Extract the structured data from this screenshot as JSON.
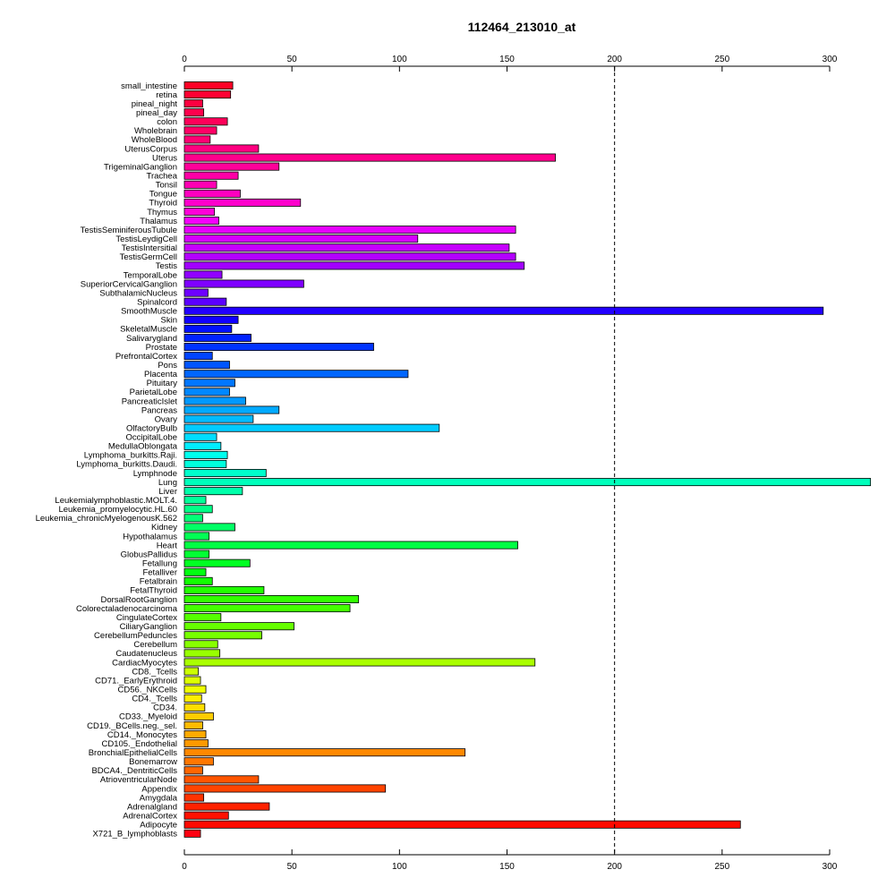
{
  "chart_data": {
    "type": "bar",
    "orientation": "horizontal",
    "title": "112464_213010_at",
    "xlim": [
      0,
      300
    ],
    "x_ticks": [
      0,
      50,
      100,
      150,
      200,
      250,
      300
    ],
    "reference_line": 200,
    "grid": false,
    "categories": [
      "small_intestine",
      "retina",
      "pineal_night",
      "pineal_day",
      "colon",
      "Wholebrain",
      "WholeBlood",
      "UterusCorpus",
      "Uterus",
      "TrigeminalGanglion",
      "Trachea",
      "Tonsil",
      "Tongue",
      "Thyroid",
      "Thymus",
      "Thalamus",
      "TestisSeminiferousTubule",
      "TestisLeydigCell",
      "TestisIntersitial",
      "TestisGermCell",
      "Testis",
      "TemporalLobe",
      "SuperiorCervicalGanglion",
      "SubthalamicNucleus",
      "Spinalcord",
      "SmoothMuscle",
      "Skin",
      "SkeletalMuscle",
      "Salivarygland",
      "Prostate",
      "PrefrontalCortex",
      "Pons",
      "Placenta",
      "Pituitary",
      "ParietalLobe",
      "PancreaticIslet",
      "Pancreas",
      "Ovary",
      "OlfactoryBulb",
      "OccipitalLobe",
      "MedullaOblongata",
      "Lymphoma_burkitts.Raji.",
      "Lymphoma_burkitts.Daudi.",
      "Lymphnode",
      "Lung",
      "Liver",
      "Leukemialymphoblastic.MOLT.4.",
      "Leukemia_promyelocytic.HL.60",
      "Leukemia_chronicMyelogenousK.562",
      "Kidney",
      "Hypothalamus",
      "Heart",
      "GlobusPallidus",
      "Fetallung",
      "Fetalliver",
      "Fetalbrain",
      "FetalThyroid",
      "DorsalRootGanglion",
      "Colorectaladenocarcinoma",
      "CingulateCortex",
      "CiliaryGanglion",
      "CerebellumPeduncles",
      "Cerebellum",
      "Caudatenucleus",
      "CardiacMyocytes",
      "CD8._Tcells",
      "CD71._EarlyErythroid",
      "CD56._NKCells",
      "CD4._Tcells",
      "CD34.",
      "CD33._Myeloid",
      "CD19._BCells.neg._sel.",
      "CD14._Monocytes",
      "CD105._Endothelial",
      "BronchialEpithelialCells",
      "Bonemarrow",
      "BDCA4._DentriticCells",
      "AtrioventricularNode",
      "Appendix",
      "Amygdala",
      "Adrenalgland",
      "AdrenalCortex",
      "Adipocyte",
      "X721_B_lymphoblasts"
    ],
    "values": [
      22.5,
      21.5,
      8.5,
      9,
      20,
      15,
      12,
      34.5,
      172.5,
      44,
      25,
      15,
      26,
      54,
      14,
      16,
      154,
      108.5,
      151,
      154,
      158,
      17.5,
      55.5,
      11,
      19.5,
      297,
      25,
      22,
      31,
      88,
      13,
      21,
      104,
      23.5,
      21,
      28.5,
      44,
      32,
      118.5,
      15,
      17,
      20,
      19.5,
      38,
      319,
      27,
      10,
      13,
      8.5,
      23.5,
      11.5,
      155,
      11.5,
      30.5,
      10,
      13,
      37,
      81,
      77,
      17,
      51,
      36,
      15.5,
      16.5,
      163,
      6.5,
      7.5,
      10,
      8,
      9.5,
      13.5,
      8.5,
      10,
      11,
      130.5,
      13.5,
      8.5,
      34.5,
      93.5,
      9,
      39.5,
      20.5,
      258.5,
      7.5
    ],
    "colors": [
      "#ff0026",
      "#ff0033",
      "#ff0040",
      "#ff004d",
      "#ff0059",
      "#ff0066",
      "#ff0073",
      "#ff0080",
      "#ff008c",
      "#ff0099",
      "#ff00a6",
      "#ff00b3",
      "#ff00bf",
      "#ff00cc",
      "#ff00d9",
      "#f500ff",
      "#e600ff",
      "#d500ff",
      "#c500ff",
      "#b300ff",
      "#a200ff",
      "#9100ff",
      "#7f00ff",
      "#6e00ff",
      "#5c00ff",
      "#2200ff",
      "#1100ff",
      "#0011ff",
      "#0022ff",
      "#0033ff",
      "#0044ff",
      "#0055ff",
      "#0066ff",
      "#0077ff",
      "#0088ff",
      "#0099ff",
      "#00aaff",
      "#00bbff",
      "#00ccff",
      "#00ddff",
      "#00eeff",
      "#00ffee",
      "#00ffdd",
      "#00ffcc",
      "#00ffbb",
      "#00ffaa",
      "#00ff99",
      "#00ff88",
      "#00ff77",
      "#00ff66",
      "#00ff55",
      "#00ff44",
      "#00ff33",
      "#00ff22",
      "#00ff11",
      "#11ff00",
      "#22ff00",
      "#33ff00",
      "#44ff00",
      "#55ff00",
      "#66ff00",
      "#77ff00",
      "#88ff00",
      "#99ff00",
      "#aaff00",
      "#ccff00",
      "#ddff00",
      "#eeff00",
      "#ffee00",
      "#ffdd00",
      "#ffcc00",
      "#ffbb00",
      "#ffaa00",
      "#ff9900",
      "#ff8800",
      "#ff7700",
      "#ff6600",
      "#ff5500",
      "#ff4400",
      "#ff3300",
      "#ff2200",
      "#ff1100",
      "#ff0a00",
      "#ff0011"
    ]
  }
}
